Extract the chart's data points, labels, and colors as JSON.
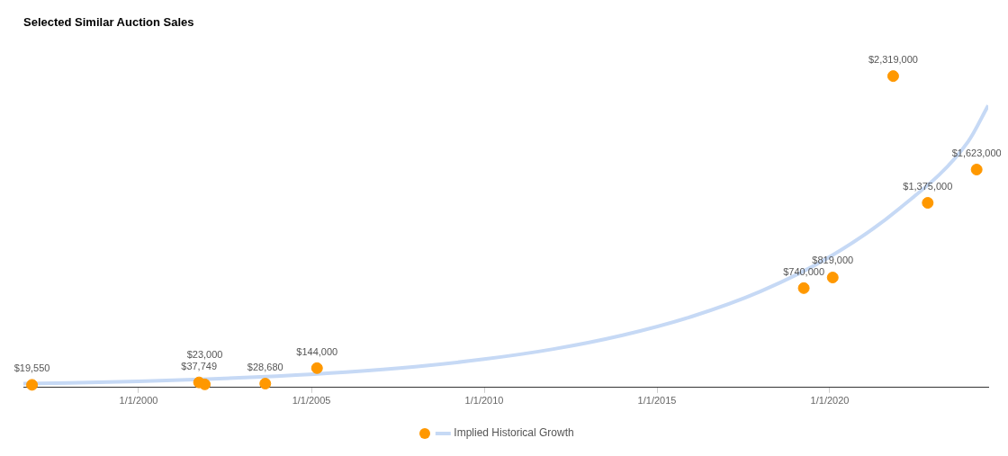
{
  "chart_data": {
    "type": "scatter",
    "title": "Selected Similar Auction Sales",
    "xlim": [
      "1996-09-01",
      "2024-08-01"
    ],
    "xticks": [
      {
        "value": "2000-01-01",
        "label": "1/1/2000"
      },
      {
        "value": "2005-01-01",
        "label": "1/1/2005"
      },
      {
        "value": "2010-01-01",
        "label": "1/1/2010"
      },
      {
        "value": "2015-01-01",
        "label": "1/1/2015"
      },
      {
        "value": "2020-01-01",
        "label": "1/1/2020"
      }
    ],
    "tick_labels": "x",
    "grid": false,
    "legend": "bottom",
    "series": [
      {
        "marker": "circle",
        "color": "#ff9800",
        "x": [
          "1996-12",
          "2001-10",
          "2001-12",
          "2003-09",
          "2005-03",
          "2019-04",
          "2020-02",
          "2021-11",
          "2022-11",
          "2024-04"
        ],
        "values": [
          19550,
          37749,
          23000,
          28680,
          144000,
          740000,
          819000,
          2319000,
          1375000,
          1623000
        ],
        "value_labels": [
          "$19,550",
          "$37,749",
          "$23,000",
          "$28,680",
          "$144,000",
          "$740,000",
          "$819,000",
          "$2,319,000",
          "$1,375,000",
          "$1,623,000"
        ]
      },
      {
        "type": "line",
        "marker": "none",
        "name": "Implied Historical Growth",
        "color": "#c6d9f5",
        "x": [
          "1996-09",
          "1998-01",
          "2000-01",
          "2002-01",
          "2004-01",
          "2006-01",
          "2008-01",
          "2010-01",
          "2012-01",
          "2014-01",
          "2016-01",
          "2018-01",
          "2020-01",
          "2022-01",
          "2024-01",
          "2024-08"
        ],
        "values": [
          28000,
          34000,
          46000,
          62000,
          84000,
          114000,
          155000,
          211000,
          286000,
          389000,
          528000,
          716000,
          973000,
          1330000,
          1830000,
          2100000
        ]
      }
    ]
  }
}
